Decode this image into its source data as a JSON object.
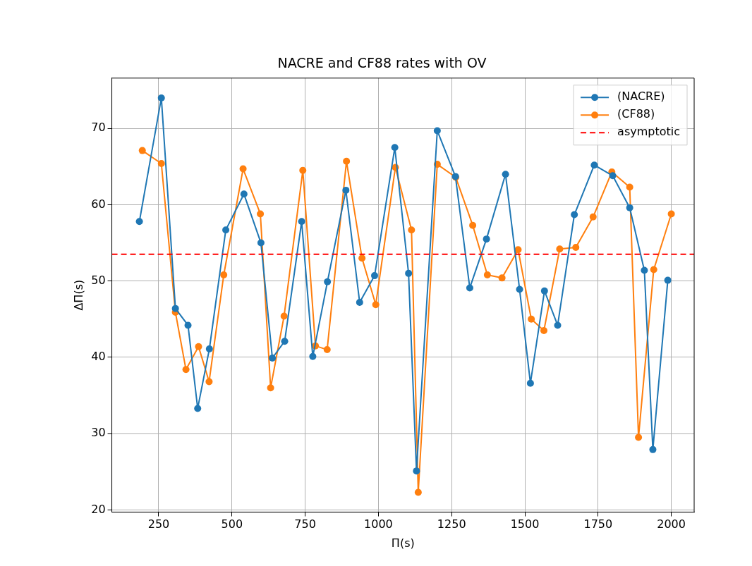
{
  "chart_data": {
    "type": "line",
    "title": "NACRE and CF88 rates with OV",
    "xlabel": "Π(s)",
    "ylabel": "ΔΠ(s)",
    "series": [
      {
        "name": "(NACRE)",
        "color": "#1f77b4",
        "x": [
          184,
          259,
          307,
          350,
          383,
          423,
          479,
          541,
          599,
          638,
          680,
          738,
          776,
          826,
          889,
          936,
          987,
          1056,
          1103,
          1130,
          1201,
          1263,
          1312,
          1369,
          1434,
          1482,
          1519,
          1567,
          1612,
          1669,
          1737,
          1800,
          1858,
          1908,
          1937,
          1988
        ],
        "values": [
          57.8,
          74.0,
          46.4,
          44.2,
          33.3,
          41.1,
          56.7,
          61.4,
          55.0,
          39.9,
          42.1,
          57.8,
          40.1,
          49.9,
          61.9,
          47.2,
          50.7,
          67.5,
          51.0,
          25.1,
          69.7,
          63.7,
          49.1,
          55.5,
          64.0,
          48.9,
          36.6,
          48.7,
          44.2,
          58.7,
          65.2,
          63.8,
          59.6,
          51.4,
          27.9,
          50.1
        ]
      },
      {
        "name": "(CF88)",
        "color": "#ff7f0e",
        "x": [
          194,
          259,
          307,
          343,
          386,
          422,
          472,
          538,
          597,
          632,
          678,
          742,
          785,
          825,
          891,
          944,
          991,
          1058,
          1113,
          1136,
          1201,
          1264,
          1322,
          1372,
          1422,
          1477,
          1522,
          1565,
          1619,
          1674,
          1733,
          1797,
          1858,
          1888,
          1940,
          2000
        ],
        "values": [
          67.1,
          65.4,
          45.9,
          38.4,
          41.4,
          36.8,
          50.8,
          64.7,
          58.8,
          36.0,
          45.4,
          64.5,
          41.5,
          41.0,
          65.7,
          53.0,
          46.9,
          64.9,
          56.7,
          22.3,
          65.3,
          63.6,
          57.3,
          50.8,
          50.4,
          54.1,
          45.0,
          43.5,
          54.2,
          54.4,
          58.4,
          64.3,
          62.3,
          29.5,
          51.5,
          58.8
        ]
      }
    ],
    "ref_lines": [
      {
        "axis": "y",
        "value": 53.5,
        "label": "asymptotic",
        "color": "#ff0000",
        "line_style": "dashed"
      }
    ],
    "xlim": [
      90,
      2078
    ],
    "ylim": [
      19.7,
      76.6
    ],
    "xticks": [
      250,
      500,
      750,
      1000,
      1250,
      1500,
      1750,
      2000
    ],
    "yticks": [
      20,
      30,
      40,
      50,
      60,
      70
    ],
    "grid": true,
    "legend": "top right",
    "marker": "circle",
    "line_style": "solid"
  }
}
